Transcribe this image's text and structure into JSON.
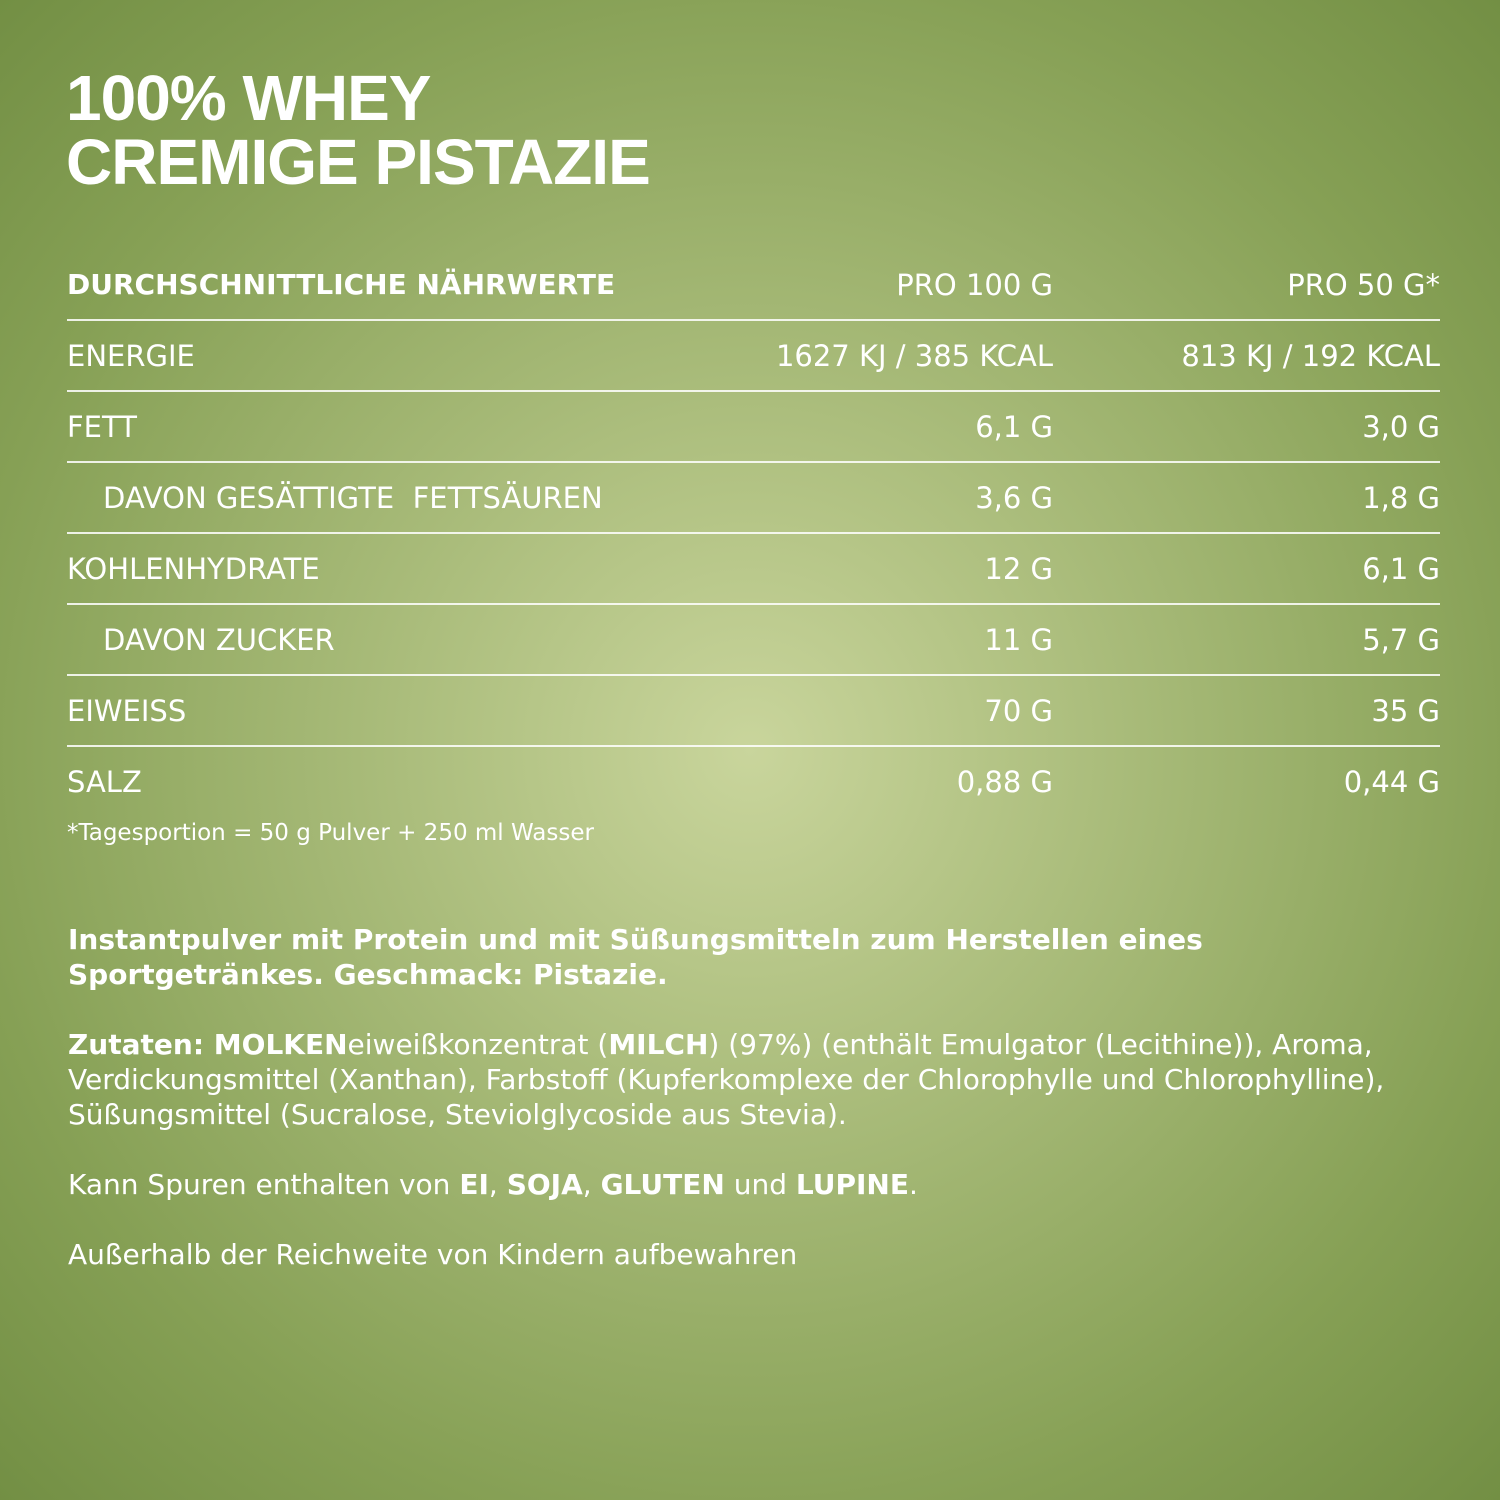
{
  "title": {
    "line1": "100% WHEY",
    "line2": "CREMIGE PISTAZIE"
  },
  "table": {
    "headers": [
      "DURCHSCHNITTLICHE NÄHRWERTE",
      "PRO 100 G",
      "PRO 50 G*"
    ],
    "rows": [
      {
        "label": "ENERGIE",
        "per100": "1627 KJ / 385 KCAL",
        "per50": "813 KJ / 192 KCAL"
      },
      {
        "label": "FETT",
        "per100": "6,1 G",
        "per50": "3,0 G"
      },
      {
        "label": "DAVON GESÄTTIGTE  FETTSÄUREN",
        "per100": "3,6 G",
        "per50": "1,8 G"
      },
      {
        "label": "KOHLENHYDRATE",
        "per100": "12 G",
        "per50": "6,1 G"
      },
      {
        "label": "DAVON ZUCKER",
        "per100": "11 G",
        "per50": "5,7 G"
      },
      {
        "label": "EIWEISS",
        "per100": "70 G",
        "per50": "35 G"
      },
      {
        "label": "SALZ",
        "per100": "0,88 G",
        "per50": "0,44 G"
      }
    ],
    "footnote": "*Tagesportion = 50 g Pulver + 250 ml Wasser"
  },
  "description": "Instantpulver mit Protein und mit Süßungsmitteln zum Herstellen eines Sportgetränkes. Geschmack: Pistazie.",
  "ingredients": {
    "s0": "Zutaten: ",
    "s1": "MOLKEN",
    "s2": "eiweißkonzentrat (",
    "s3": "MILCH",
    "s4": ") (97%) (enthält Emulgator (Lecithine)), Aroma, Verdickungsmittel (Xanthan), Farbstoff (Kupferkomplexe der Chlorophylle und Chlorophylline), Süßungsmittel (Sucralose, Steviolglycoside aus Stevia)."
  },
  "allergens": {
    "s0": "Kann Spuren enthalten von ",
    "s1": "EI",
    "s2": ", ",
    "s3": "SOJA",
    "s4": ", ",
    "s5": "GLUTEN",
    "s6": " und ",
    "s7": "LUPINE",
    "s8": "."
  },
  "warning": "Außerhalb der Reichweite von Kindern aufbewahren"
}
